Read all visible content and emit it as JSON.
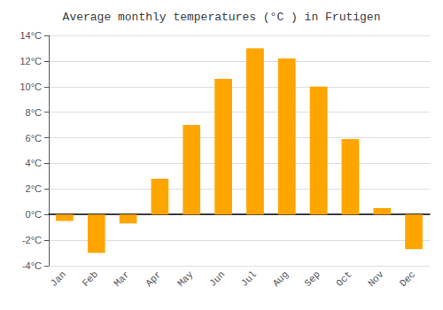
{
  "chart_data": {
    "type": "bar",
    "title": "Average monthly temperatures (°C ) in Frutigen",
    "categories": [
      "Jan",
      "Feb",
      "Mar",
      "Apr",
      "May",
      "Jun",
      "Jul",
      "Aug",
      "Sep",
      "Oct",
      "Nov",
      "Dec"
    ],
    "values": [
      -0.5,
      -3.0,
      -0.7,
      2.8,
      7.0,
      10.6,
      13.0,
      12.2,
      10.0,
      5.9,
      0.5,
      -2.7
    ],
    "color": "#FFA500",
    "ylim": [
      -4,
      14
    ],
    "yticks": [
      {
        "value": -4,
        "label": "-4°C"
      },
      {
        "value": -2,
        "label": "-2°C"
      },
      {
        "value": 0,
        "label": "0°C"
      },
      {
        "value": 2,
        "label": "2°C"
      },
      {
        "value": 4,
        "label": "4°C"
      },
      {
        "value": 6,
        "label": "6°C"
      },
      {
        "value": 8,
        "label": "8°C"
      },
      {
        "value": 10,
        "label": "10°C"
      },
      {
        "value": 12,
        "label": "12°C"
      },
      {
        "value": 14,
        "label": "14°C"
      }
    ],
    "grid": true
  }
}
